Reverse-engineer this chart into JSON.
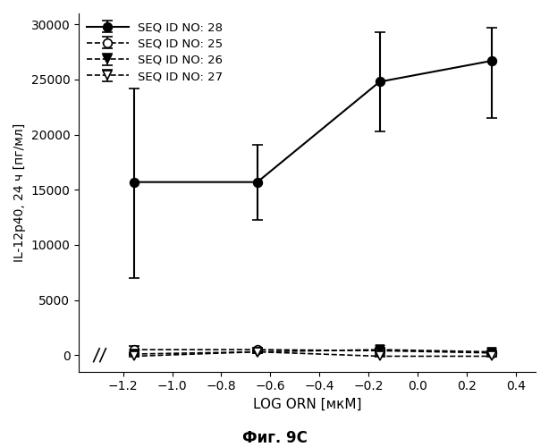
{
  "xlabel": "LOG ORN [мкМ]",
  "ylabel": "IL-12p40, 24 ч [пг/мл]",
  "caption": "Фиг. 9C",
  "xlim": [
    -1.38,
    0.48
  ],
  "ylim": [
    -1500,
    31000
  ],
  "yticks": [
    0,
    5000,
    10000,
    15000,
    20000,
    25000,
    30000
  ],
  "xticks": [
    -1.2,
    -1.0,
    -0.8,
    -0.6,
    -0.4,
    -0.2,
    0.0,
    0.2,
    0.4
  ],
  "series": [
    {
      "label": "SEQ ID NO: 28",
      "x": [
        -1.155,
        -0.653,
        -0.155,
        0.301
      ],
      "y": [
        15700,
        15700,
        24800,
        26700
      ],
      "yerr_low": [
        8700,
        3400,
        4500,
        5200
      ],
      "yerr_high": [
        8500,
        3400,
        4500,
        3000
      ],
      "linestyle": "-",
      "marker": "o",
      "markerfacecolor": "black",
      "color": "black",
      "linewidth": 1.5,
      "markersize": 7
    },
    {
      "label": "SEQ ID NO: 25",
      "x": [
        -1.155,
        -0.653,
        -0.155,
        0.301
      ],
      "y": [
        500,
        500,
        400,
        200
      ],
      "yerr_low": [
        300,
        200,
        200,
        100
      ],
      "yerr_high": [
        300,
        200,
        200,
        100
      ],
      "linestyle": "--",
      "marker": "o",
      "markerfacecolor": "white",
      "color": "black",
      "linewidth": 1.2,
      "markersize": 7
    },
    {
      "label": "SEQ ID NO: 26",
      "x": [
        -1.155,
        -0.653,
        -0.155,
        0.301
      ],
      "y": [
        100,
        300,
        500,
        300
      ],
      "yerr_low": [
        80,
        150,
        150,
        150
      ],
      "yerr_high": [
        80,
        150,
        150,
        150
      ],
      "linestyle": "--",
      "marker": "v",
      "markerfacecolor": "black",
      "color": "black",
      "linewidth": 1.2,
      "markersize": 7
    },
    {
      "label": "SEQ ID NO: 27",
      "x": [
        -1.155,
        -0.653,
        -0.155,
        0.301
      ],
      "y": [
        -100,
        300,
        -100,
        -100
      ],
      "yerr_low": [
        80,
        150,
        80,
        80
      ],
      "yerr_high": [
        80,
        150,
        80,
        80
      ],
      "linestyle": "--",
      "marker": "v",
      "markerfacecolor": "white",
      "color": "black",
      "linewidth": 1.2,
      "markersize": 7
    }
  ],
  "legend_loc": "upper left",
  "background_color": "white"
}
